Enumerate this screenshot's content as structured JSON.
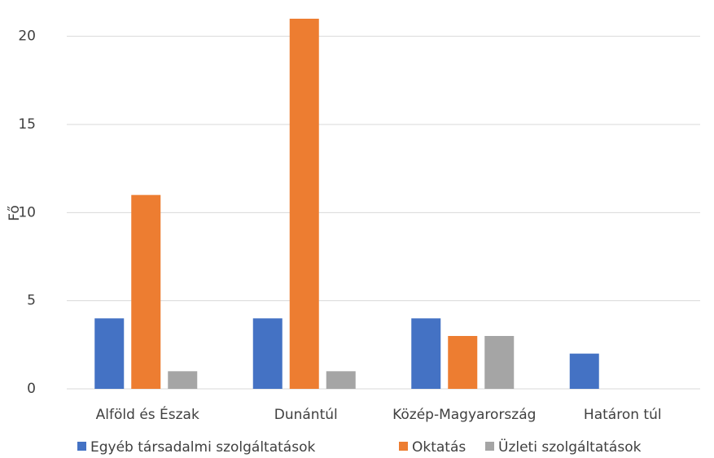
{
  "chart_data": {
    "type": "bar",
    "y_label": "Fő",
    "categories": [
      "Alföld és Észak",
      "Dunántúl",
      "Közép-Magyarország",
      "Határon túl"
    ],
    "series": [
      {
        "name": "Egyéb társadalmi szolgáltatások",
        "color": "#4472c4",
        "values": [
          4,
          4,
          4,
          2
        ]
      },
      {
        "name": "Oktatás",
        "color": "#ed7d31",
        "values": [
          11,
          21,
          3,
          0
        ]
      },
      {
        "name": "Üzleti szolgáltatások",
        "color": "#a5a5a5",
        "values": [
          1,
          1,
          3,
          0
        ]
      }
    ],
    "ylim": [
      0,
      21
    ],
    "yticks": [
      0,
      5,
      10,
      15,
      20
    ],
    "grid": true,
    "legend": "bottom"
  }
}
